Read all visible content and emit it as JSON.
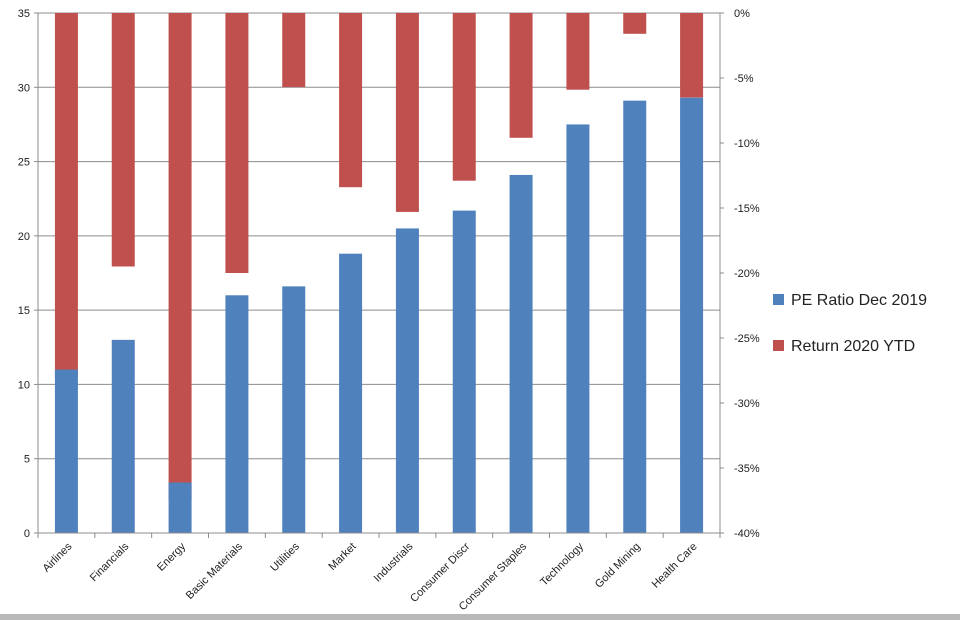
{
  "chart_data": {
    "type": "bar",
    "categories": [
      "Airlines",
      "Financials",
      "Energy",
      "Basic Materials",
      "Utilities",
      "Market",
      "Industrials",
      "Consumer Discr",
      "Consumer Staples",
      "Technology",
      "Gold Mining",
      "Health Care"
    ],
    "series": [
      {
        "name": "PE Ratio Dec 2019",
        "axis": "left",
        "color": "#4f81bd",
        "values": [
          11.0,
          13.0,
          3.4,
          16.0,
          16.6,
          18.8,
          20.5,
          21.7,
          24.1,
          27.5,
          29.1,
          29.3
        ]
      },
      {
        "name": "Return 2020 YTD",
        "axis": "right",
        "color": "#c0504d",
        "values": [
          -28.0,
          -19.5,
          -37.5,
          -20.0,
          -5.7,
          -13.4,
          -15.3,
          -12.9,
          -9.6,
          -5.9,
          -1.6,
          -6.5
        ]
      }
    ],
    "left_axis": {
      "ylim": [
        0,
        35
      ],
      "ticks": [
        0,
        5,
        10,
        15,
        20,
        25,
        30,
        35
      ],
      "tick_labels": [
        "0",
        "5",
        "10",
        "15",
        "20",
        "25",
        "30",
        "35"
      ]
    },
    "right_axis": {
      "ylim": [
        -40,
        0
      ],
      "ticks": [
        0,
        -5,
        -10,
        -15,
        -20,
        -25,
        -30,
        -35,
        -40
      ],
      "tick_labels": [
        "0%",
        "-5%",
        "-10%",
        "-15%",
        "-20%",
        "-25%",
        "-30%",
        "-35%",
        "-40%"
      ]
    },
    "grid": true,
    "legend_position": "right",
    "title": "",
    "xlabel": "",
    "ylabel": ""
  },
  "colors": {
    "gridline": "#8c8c8c",
    "axis": "#8c8c8c",
    "background": "#ffffff"
  }
}
